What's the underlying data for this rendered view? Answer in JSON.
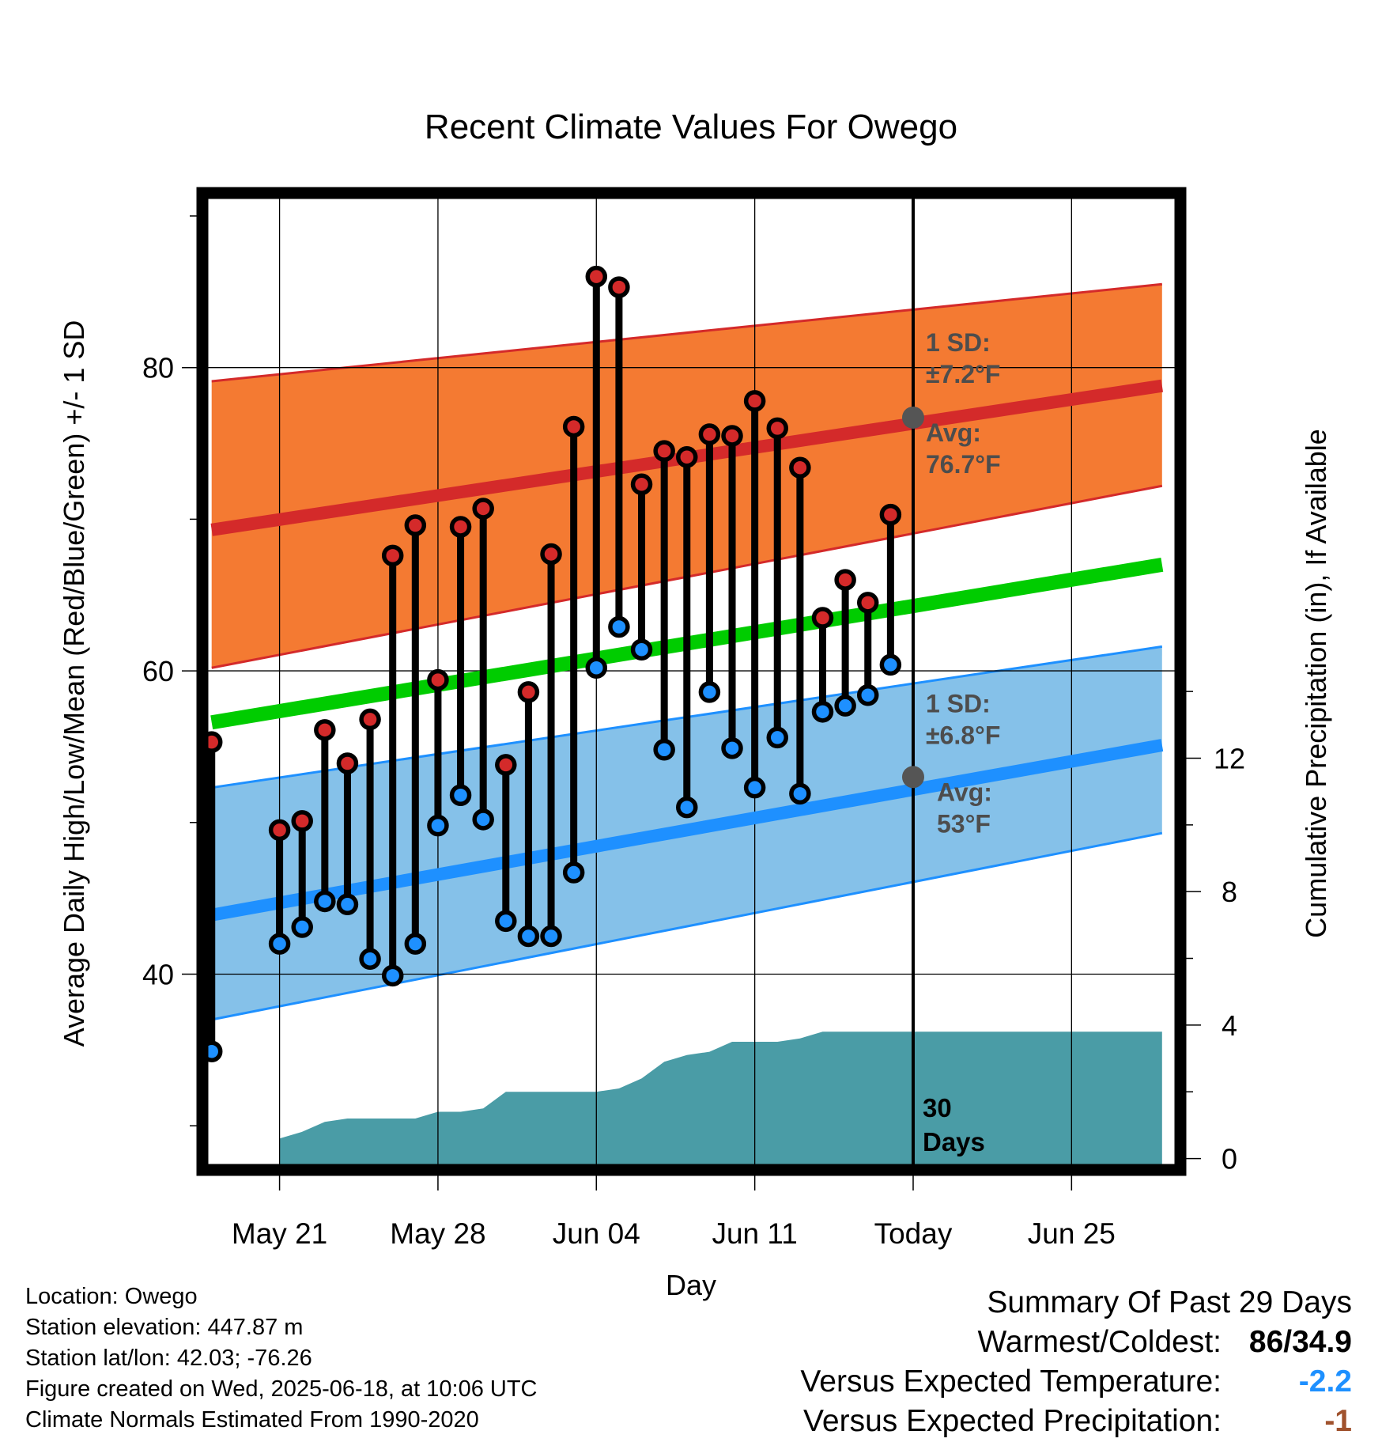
{
  "chart_data": {
    "type": "line",
    "title": "Recent Climate Values For Owego",
    "xlabel": "Day",
    "ylabel": "Average Daily High/Low/Mean (Red/Blue/Green) +/- 1 SD",
    "y2label": "Cumulative Precipitation (in), If Available",
    "x_ticks": [
      "May 21",
      "May 28",
      "Jun 04",
      "Jun 11",
      "Today",
      "Jun 25"
    ],
    "x_tick_days": [
      3,
      10,
      17,
      24,
      31,
      38
    ],
    "xlim": [
      -0.2,
      42.6
    ],
    "y_ticks": [
      40,
      60,
      80
    ],
    "ylim": [
      27.4,
      91.2
    ],
    "y2_ticks": [
      0,
      4,
      8,
      12
    ],
    "y2lim": [
      -0.2,
      28.8
    ],
    "grid": true,
    "today_day": 31,
    "days_window_label": "30\nDays",
    "normals": {
      "x": [
        0,
        42
      ],
      "high_avg": [
        69.3,
        78.8
      ],
      "high_upper": [
        79.1,
        85.5
      ],
      "high_lower": [
        60.2,
        72.2
      ],
      "low_avg": [
        43.9,
        55.1
      ],
      "low_upper": [
        52.3,
        61.6
      ],
      "low_lower": [
        37.0,
        49.3
      ],
      "mean_avg": [
        56.6,
        67.0
      ]
    },
    "series": [
      {
        "name": "High",
        "days": [
          0,
          3,
          4,
          5,
          6,
          7,
          8,
          9,
          10,
          11,
          12,
          13,
          14,
          15,
          16,
          17,
          18,
          19,
          20,
          21,
          22,
          23,
          24,
          25,
          26,
          27,
          28,
          29,
          30
        ],
        "values": [
          55.3,
          49.5,
          50.1,
          56.1,
          53.9,
          56.8,
          67.6,
          69.6,
          59.4,
          69.5,
          70.7,
          53.8,
          58.6,
          67.7,
          76.1,
          86.0,
          85.3,
          72.3,
          74.5,
          74.1,
          75.6,
          75.5,
          77.8,
          76.0,
          73.4,
          63.5,
          66.0,
          64.5,
          70.3
        ]
      },
      {
        "name": "Low",
        "days": [
          0,
          3,
          4,
          5,
          6,
          7,
          8,
          9,
          10,
          11,
          12,
          13,
          14,
          15,
          16,
          17,
          18,
          19,
          20,
          21,
          22,
          23,
          24,
          25,
          26,
          27,
          28,
          29,
          30
        ],
        "values": [
          34.9,
          42.0,
          43.1,
          44.8,
          44.6,
          41.0,
          39.9,
          42.0,
          49.8,
          51.8,
          50.2,
          43.5,
          42.5,
          42.5,
          46.7,
          60.2,
          62.9,
          61.4,
          54.8,
          51.0,
          58.6,
          54.9,
          52.3,
          55.6,
          51.9,
          57.3,
          57.7,
          58.4,
          60.4
        ]
      },
      {
        "name": "Cumulative Precipitation",
        "days": [
          3,
          4,
          5,
          6,
          7,
          8,
          9,
          10,
          11,
          12,
          13,
          14,
          15,
          16,
          17,
          18,
          19,
          20,
          21,
          22,
          23,
          24,
          25,
          26,
          27,
          28,
          29,
          30,
          31,
          42
        ],
        "values": [
          0.6,
          0.8,
          1.1,
          1.2,
          1.2,
          1.2,
          1.2,
          1.4,
          1.4,
          1.5,
          2.0,
          2.0,
          2.0,
          2.0,
          2.0,
          2.1,
          2.4,
          2.9,
          3.1,
          3.2,
          3.5,
          3.5,
          3.5,
          3.6,
          3.8,
          3.8,
          3.8,
          3.8,
          3.8,
          3.8
        ]
      }
    ],
    "annotations": {
      "high_sd": "1 SD:\n±7.2°F",
      "high_avg": "Avg:\n76.7°F",
      "low_sd": "1 SD:\n±6.8°F",
      "low_avg": "Avg:\n53°F",
      "today_high_avg": 76.7,
      "today_low_avg": 53.0
    },
    "colors": {
      "high_band": "#f47a32",
      "high_line": "#d42a2a",
      "low_band": "#85c1e9",
      "low_line": "#1e90ff",
      "mean_line": "#00cc00",
      "precip": "#4a9ca6",
      "high_marker": "#d42a2a",
      "low_marker": "#1e90ff",
      "ann_marker": "#555555"
    }
  },
  "info": {
    "location": "Location: Owego",
    "elevation": "Station elevation: 447.87 m",
    "latlon": "Station lat/lon: 42.03; -76.26",
    "created": "Figure created on Wed, 2025-06-18, at 10:06 UTC",
    "normals": "Climate Normals Estimated From 1990-2020"
  },
  "summary": {
    "heading": "Summary Of Past 29 Days",
    "warmest_label": "Warmest/Coldest:",
    "warmest_value": "86/34.9",
    "temp_label": "Versus Expected Temperature:",
    "temp_value": "-2.2",
    "temp_color": "#1e90ff",
    "precip_label": "Versus Expected Precipitation:",
    "precip_value": "-1",
    "precip_color": "#a0522d"
  }
}
